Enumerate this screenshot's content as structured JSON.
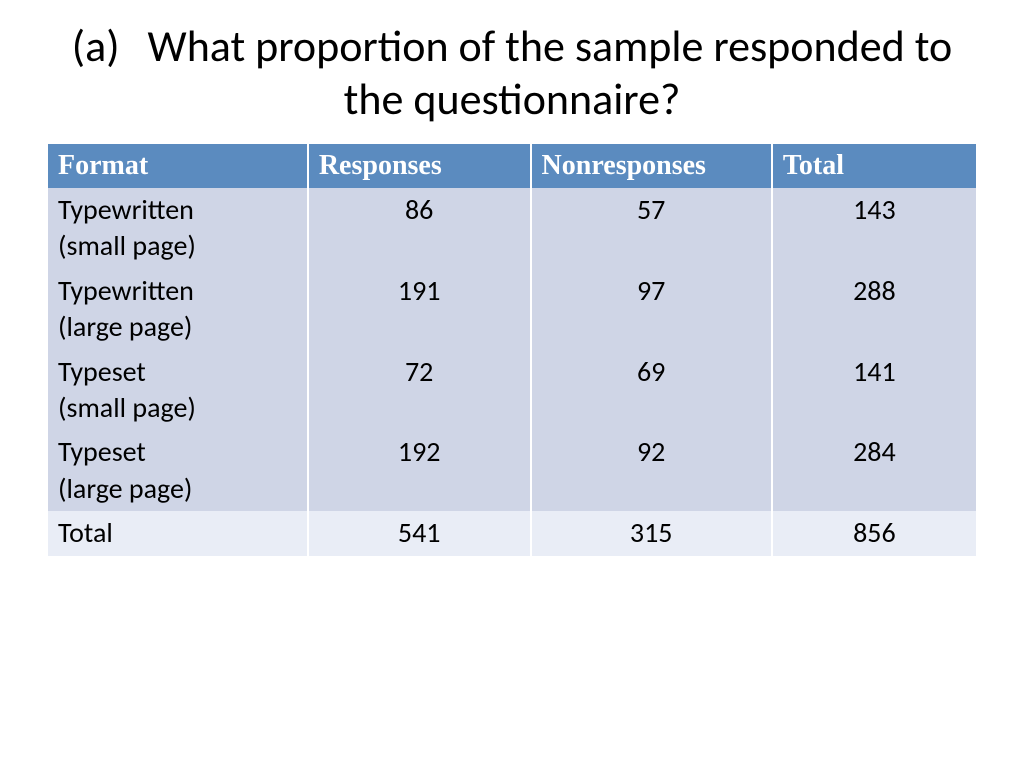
{
  "title": {
    "part": "(a)",
    "text": "What proportion of the sample responded to the questionnaire?"
  },
  "table": {
    "columns": {
      "format": "Format",
      "responses": "Responses",
      "nonresponses": "Nonresponses",
      "total": "Total"
    },
    "rows": [
      {
        "format_line1": "Typewritten",
        "format_line2": "(small page)",
        "responses": "86",
        "nonresponses": "57",
        "total": "143"
      },
      {
        "format_line1": "Typewritten",
        "format_line2": "(large page)",
        "responses": "191",
        "nonresponses": "97",
        "total": "288"
      },
      {
        "format_line1": "Typeset",
        "format_line2": "(small page)",
        "responses": "72",
        "nonresponses": "69",
        "total": "141"
      },
      {
        "format_line1": "Typeset",
        "format_line2": "(large page)",
        "responses": "192",
        "nonresponses": "92",
        "total": "284"
      }
    ],
    "footer": {
      "label": "Total",
      "responses": "541",
      "nonresponses": "315",
      "total": "856"
    },
    "header_bg": "#5b8bbf",
    "header_text_color": "#ffffff",
    "body_bg": "#cfd5e6",
    "footer_bg": "#e9edf6",
    "text_color": "#000000",
    "border_color": "#ffffff",
    "font_size_pt": 28
  }
}
